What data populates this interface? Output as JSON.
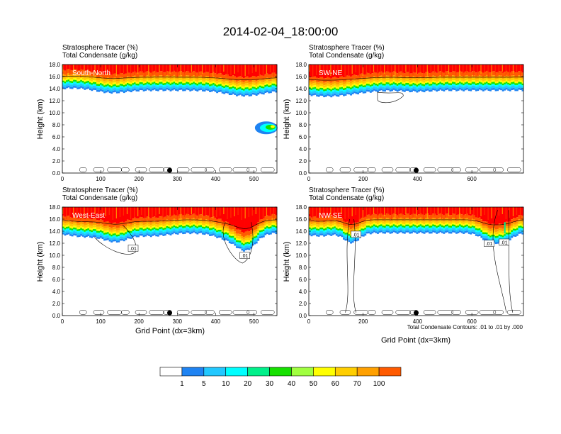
{
  "title": "2014-02-04_18:00:00",
  "footnote": "Total Condensate Contours: .01 to .01 by .000",
  "colors": {
    "levels": [
      "#ffffff",
      "#1f83f2",
      "#22c8ff",
      "#00ffff",
      "#00f08a",
      "#16e000",
      "#a0ff40",
      "#ffff00",
      "#ffce00",
      "#ffa000",
      "#ff5a00",
      "#ff0000"
    ],
    "line": "#000000"
  },
  "chart_data": [
    {
      "type": "heatmap",
      "name": "South-North",
      "title_lines": [
        "Stratosphere Tracer   (%)",
        "Total Condensate   (g/kg)"
      ],
      "xlabel": "",
      "ylabel": "Height (km)",
      "xlim": [
        0,
        560
      ],
      "ylim": [
        0,
        18
      ],
      "xticks": [
        "0",
        "100",
        "200",
        "300",
        "400",
        "500"
      ],
      "yticks": [
        "0.0",
        "2.0",
        "4.0",
        "6.0",
        "8.0",
        "10.0",
        "12.0",
        "14.0",
        "16.0",
        "18.0"
      ],
      "contour_labels": []
    },
    {
      "type": "heatmap",
      "name": "SW-NE",
      "title_lines": [
        "Stratosphere Tracer   (%)",
        "Total Condensate   (g/kg)"
      ],
      "xlabel": "",
      "ylabel": "Height (km)",
      "xlim": [
        0,
        790
      ],
      "ylim": [
        0,
        18
      ],
      "xticks": [
        "0",
        "200",
        "400",
        "600"
      ],
      "yticks": [
        "0.0",
        "2.0",
        "4.0",
        "6.0",
        "8.0",
        "10.0",
        "12.0",
        "14.0",
        "16.0",
        "18.0"
      ],
      "contour_labels": []
    },
    {
      "type": "heatmap",
      "name": "West-East",
      "title_lines": [
        "Stratosphere Tracer   (%)",
        "Total Condensate   (g/kg)"
      ],
      "xlabel": "Grid Point (dx=3km)",
      "ylabel": "Height (km)",
      "xlim": [
        0,
        560
      ],
      "ylim": [
        0,
        18
      ],
      "xticks": [
        "0",
        "100",
        "200",
        "300",
        "400",
        "500"
      ],
      "yticks": [
        "0.0",
        "2.0",
        "4.0",
        "6.0",
        "8.0",
        "10.0",
        "12.0",
        "14.0",
        "16.0",
        "18.0"
      ],
      "contour_labels": [
        ".01",
        ".01"
      ]
    },
    {
      "type": "heatmap",
      "name": "NW-SE",
      "title_lines": [
        "Stratosphere Tracer   (%)",
        "Total Condensate   (g/kg)"
      ],
      "xlabel": "Grid Point (dx=3km)",
      "ylabel": "Height (km)",
      "xlim": [
        0,
        790
      ],
      "ylim": [
        0,
        18
      ],
      "xticks": [
        "0",
        "200",
        "400",
        "600"
      ],
      "yticks": [
        "0.0",
        "2.0",
        "4.0",
        "6.0",
        "8.0",
        "10.0",
        "12.0",
        "14.0",
        "16.0",
        "18.0"
      ],
      "contour_labels": [
        ".01",
        ".01",
        ".01"
      ]
    }
  ],
  "colorbar": {
    "labels": [
      "1",
      "5",
      "10",
      "20",
      "30",
      "40",
      "50",
      "60",
      "70",
      "100"
    ]
  }
}
